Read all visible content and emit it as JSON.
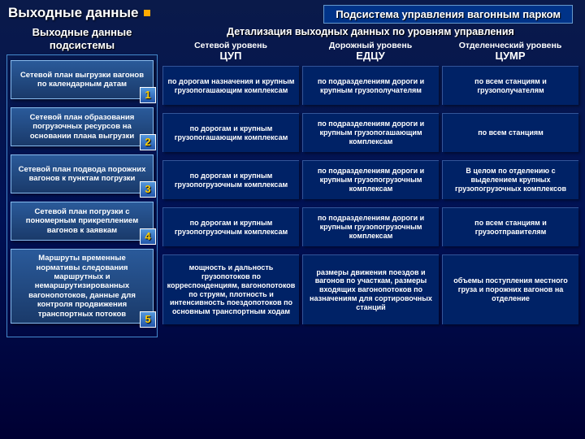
{
  "header": {
    "main_title": "Выходные данные",
    "subtitle": "Подсистема управления вагонным парком"
  },
  "left": {
    "heading": "Выходные данные подсистемы",
    "plans": [
      {
        "num": "1",
        "text": "Сетевой план выгрузки вагонов по календарным датам",
        "tall": false
      },
      {
        "num": "2",
        "text": "Сетевой план образования погрузочных ресурсов на основании плана выгрузки",
        "tall": false
      },
      {
        "num": "3",
        "text": "Сетевой план подвода порожних вагонов к пунктам погрузки",
        "tall": false
      },
      {
        "num": "4",
        "text": "Сетевой план погрузки с пономерным прикреплением вагонов к заявкам",
        "tall": false
      },
      {
        "num": "5",
        "text": "Маршруты временные нормативы следования маршрутных и немаршрутизированных вагонопотоков, данные для контроля продвижения транспортных потоков",
        "tall": true
      }
    ]
  },
  "right": {
    "heading": "Детализация выходных данных по уровням управления",
    "tiers": [
      {
        "label": "Сетевой уровень",
        "abbr": "ЦУП"
      },
      {
        "label": "Дорожный уровень",
        "abbr": "ЕДЦУ"
      },
      {
        "label": "Отделенческий уровень",
        "abbr": "ЦУМР"
      }
    ],
    "rows": [
      {
        "tall": false,
        "cells": [
          "по дорогам назначения и крупным грузопогашающим комплексам",
          "по подразделениям дороги и крупным грузополучателям",
          "по всем станциям и грузополучателям"
        ]
      },
      {
        "tall": false,
        "cells": [
          "по дорогам и крупным грузопогашающим комплексам",
          "по подразделениям дороги и крупным грузопогашающим комплексам",
          "по всем станциям"
        ]
      },
      {
        "tall": false,
        "cells": [
          "по дорогам и крупным грузопогрузочным комплексам",
          "по подразделениям дороги и крупным грузопогрузочным комплексам",
          "В целом по отделению с выделением крупных грузопогрузочных комплексов"
        ]
      },
      {
        "tall": false,
        "cells": [
          "по дорогам и крупным грузопогрузочным комплексам",
          "по подразделениям дороги и крупным грузопогрузочным комплексам",
          "по всем станциям и грузоотправителям"
        ]
      },
      {
        "tall": true,
        "cells": [
          "мощность и дальность грузопотоков по корреспонденциям, вагонопотоков по струям, плотность и интенсивность поездопотоков по основным транспортным ходам",
          "размеры движения поездов и вагонов по участкам, размеры входящих вагонопотоков по назначениям для сортировочных станций",
          "объемы поступления местного груза и порожних вагонов на отделение"
        ]
      }
    ]
  }
}
